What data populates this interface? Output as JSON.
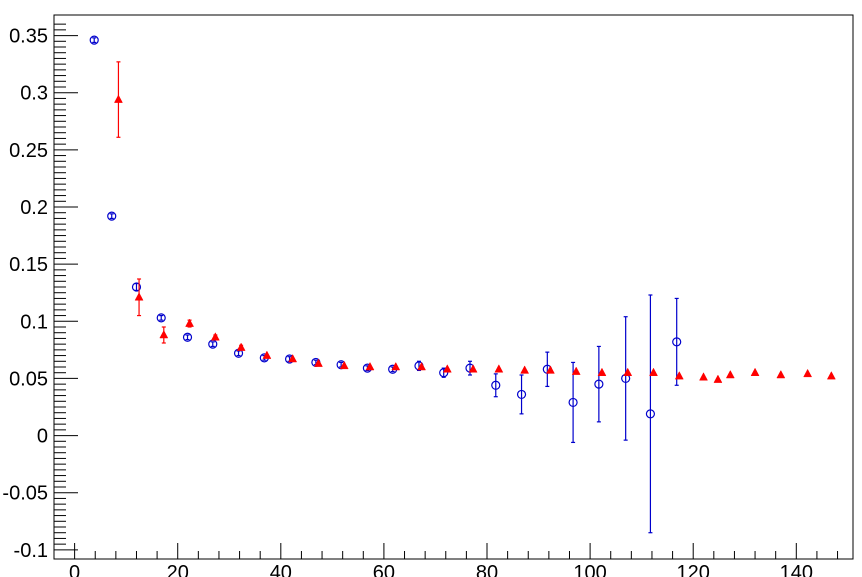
{
  "chart_data": {
    "type": "scatter",
    "title": "",
    "xlabel": "",
    "ylabel": "",
    "xlim": [
      -4,
      151
    ],
    "ylim": [
      -0.108,
      0.368
    ],
    "grid": false,
    "x_ticks": [
      0,
      20,
      40,
      60,
      80,
      100,
      120,
      140
    ],
    "y_ticks": [
      -0.1,
      -0.05,
      0,
      0.05,
      0.1,
      0.15,
      0.2,
      0.25,
      0.3,
      0.35
    ],
    "x_tick_labels": [
      "0",
      "20",
      "40",
      "60",
      "80",
      "100",
      "120",
      "140"
    ],
    "y_tick_labels": [
      "-0.1",
      "-0.05",
      "0",
      "0.05",
      "0.1",
      "0.15",
      "0.2",
      "0.25",
      "0.3",
      "0.35"
    ],
    "series": [
      {
        "marker": "open-circle",
        "color": "#0000cc",
        "points": [
          {
            "x": 3.8,
            "y": 0.346,
            "err": 0.002
          },
          {
            "x": 7.2,
            "y": 0.192,
            "err": 0.002
          },
          {
            "x": 12.0,
            "y": 0.13,
            "err": 0.003
          },
          {
            "x": 16.8,
            "y": 0.103,
            "err": 0.002
          },
          {
            "x": 21.9,
            "y": 0.086,
            "err": 0.002
          },
          {
            "x": 26.8,
            "y": 0.08,
            "err": 0.002
          },
          {
            "x": 31.8,
            "y": 0.072,
            "err": 0.002
          },
          {
            "x": 36.8,
            "y": 0.068,
            "err": 0.002
          },
          {
            "x": 41.7,
            "y": 0.067,
            "err": 0.002
          },
          {
            "x": 46.8,
            "y": 0.064,
            "err": 0.002
          },
          {
            "x": 51.7,
            "y": 0.062,
            "err": 0.002
          },
          {
            "x": 56.8,
            "y": 0.059,
            "err": 0.002
          },
          {
            "x": 61.7,
            "y": 0.058,
            "err": 0.002
          },
          {
            "x": 66.8,
            "y": 0.061,
            "err": 0.004
          },
          {
            "x": 71.6,
            "y": 0.055,
            "err": 0.004
          },
          {
            "x": 76.7,
            "y": 0.059,
            "err": 0.006
          },
          {
            "x": 81.7,
            "y": 0.044,
            "err": 0.01
          },
          {
            "x": 86.7,
            "y": 0.036,
            "err": 0.017
          },
          {
            "x": 91.7,
            "y": 0.058,
            "err": 0.015
          },
          {
            "x": 96.7,
            "y": 0.029,
            "err": 0.035
          },
          {
            "x": 101.7,
            "y": 0.045,
            "err": 0.033
          },
          {
            "x": 106.9,
            "y": 0.05,
            "err": 0.054
          },
          {
            "x": 111.7,
            "y": 0.019,
            "err": 0.104
          },
          {
            "x": 116.8,
            "y": 0.082,
            "err": 0.038
          }
        ]
      },
      {
        "marker": "filled-triangle",
        "color": "#ff0000",
        "points": [
          {
            "x": 8.5,
            "y": 0.294,
            "err": 0.033
          },
          {
            "x": 12.5,
            "y": 0.121,
            "err": 0.016
          },
          {
            "x": 17.3,
            "y": 0.088,
            "err": 0.007
          },
          {
            "x": 22.3,
            "y": 0.098,
            "err": 0.003
          },
          {
            "x": 27.3,
            "y": 0.086,
            "err": 0.002
          },
          {
            "x": 32.3,
            "y": 0.077,
            "err": 0.002
          },
          {
            "x": 37.3,
            "y": 0.07,
            "err": 0.001
          },
          {
            "x": 42.3,
            "y": 0.067,
            "err": 0.001
          },
          {
            "x": 47.3,
            "y": 0.063,
            "err": 0.001
          },
          {
            "x": 52.3,
            "y": 0.061,
            "err": 0.001
          },
          {
            "x": 57.3,
            "y": 0.06,
            "err": 0.001
          },
          {
            "x": 62.3,
            "y": 0.06,
            "err": 0.001
          },
          {
            "x": 67.3,
            "y": 0.06,
            "err": 0.001
          },
          {
            "x": 72.3,
            "y": 0.058,
            "err": 0.001
          },
          {
            "x": 77.3,
            "y": 0.058,
            "err": 0.001
          },
          {
            "x": 82.3,
            "y": 0.058,
            "err": 0.001
          },
          {
            "x": 87.3,
            "y": 0.057,
            "err": 0.001
          },
          {
            "x": 92.3,
            "y": 0.057,
            "err": 0.001
          },
          {
            "x": 97.3,
            "y": 0.056,
            "err": 0.001
          },
          {
            "x": 102.3,
            "y": 0.055,
            "err": 0.001
          },
          {
            "x": 107.3,
            "y": 0.055,
            "err": 0.001
          },
          {
            "x": 112.3,
            "y": 0.055,
            "err": 0.001
          },
          {
            "x": 117.3,
            "y": 0.052,
            "err": 0.001
          },
          {
            "x": 122.0,
            "y": 0.051,
            "err": 0.001
          },
          {
            "x": 124.8,
            "y": 0.049,
            "err": 0.001
          },
          {
            "x": 127.2,
            "y": 0.053,
            "err": 0.001
          },
          {
            "x": 132.0,
            "y": 0.055,
            "err": 0.001
          },
          {
            "x": 137.0,
            "y": 0.053,
            "err": 0.001
          },
          {
            "x": 142.2,
            "y": 0.054,
            "err": 0.001
          },
          {
            "x": 146.8,
            "y": 0.052,
            "err": 0.001
          }
        ]
      }
    ]
  }
}
